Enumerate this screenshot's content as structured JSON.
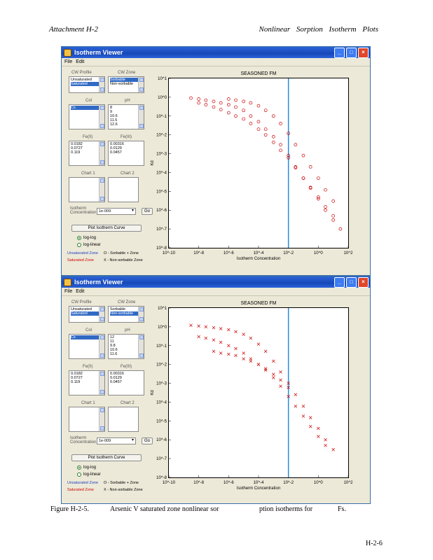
{
  "page_header": {
    "left": "Attachment    H-2",
    "right": "Nonlinear Sorption Isotherm Plots"
  },
  "windows": [
    {
      "title": "Isotherm Viewer",
      "menu": [
        "File",
        "Edit"
      ],
      "panel": {
        "cw_profile_label": "CW Profile",
        "cw_profile_items": [
          "Unsaturated",
          "Saturated"
        ],
        "cw_profile_selected": 1,
        "cw_zone_label": "CW Zone",
        "cw_zone_items": [
          "Sorbable",
          "Non-sorbable"
        ],
        "cw_zone_selected": 0,
        "col_label": "Col",
        "col_items": [
          "Cs"
        ],
        "col_selected": 0,
        "ph_label": "pH",
        "ph_items": [
          "8",
          "9",
          "10.6",
          "11.5",
          "12.6"
        ],
        "ph_selected": -1,
        "fe_label": "Fe(II)",
        "fe_items": [
          "0.0182",
          "0.0727",
          "0.119"
        ],
        "fe3_label": "Fe(III)",
        "fe3_items": [
          "0.00316",
          "0.0129",
          "0.0457"
        ],
        "chart1_label": "Chart 1",
        "chart2_label": "Chart 2",
        "scale_label": "Isotherm Concentration",
        "scale_value": "1e-009",
        "go_label": "Go",
        "plot_button": "Plot Isotherm Curve",
        "radio1": "log-log",
        "radio2": "log-linear",
        "legend1": "Unsaturated Zone",
        "legend2": "Saturated Zone",
        "legend3": "O - Sorbable + Zone",
        "legend4": "X - Non-sorbable Zone"
      },
      "chart_title": "SEASONED FM",
      "marker": "circle"
    },
    {
      "title": "Isotherm Viewer",
      "menu": [
        "File",
        "Edit"
      ],
      "panel": {
        "cw_profile_label": "CW Profile",
        "cw_profile_items": [
          "Unsaturated",
          "Saturated"
        ],
        "cw_profile_selected": 1,
        "cw_zone_label": "CW Zone",
        "cw_zone_items": [
          "Sorbable",
          "Non-sorbable"
        ],
        "cw_zone_selected": 1,
        "col_label": "Col",
        "col_items": [
          "Cs"
        ],
        "col_selected": 0,
        "ph_label": "pH",
        "ph_items": [
          "12",
          "11",
          "9.8",
          "10.6",
          "11.6"
        ],
        "ph_selected": -1,
        "fe_label": "Fe(II)",
        "fe_items": [
          "0.0182",
          "0.0727",
          "0.119"
        ],
        "fe3_label": "Fe(III)",
        "fe3_items": [
          "0.00316",
          "0.0129",
          "0.0457"
        ],
        "chart1_label": "Chart 1",
        "chart2_label": "Chart 2",
        "scale_label": "Isotherm Concentration",
        "scale_value": "1e-009",
        "go_label": "Go",
        "plot_button": "Plot Isotherm Curve",
        "radio1": "log-log",
        "radio2": "log-linear",
        "legend1": "Unsaturated Zone",
        "legend2": "Saturated Zone",
        "legend3": "O - Sorbable + Zone",
        "legend4": "X - Non-sorbable Zone"
      },
      "chart_title": "SEASONED FM",
      "marker": "x"
    }
  ],
  "chart_data": [
    {
      "type": "scatter",
      "marker": "circle",
      "color": "#cc0000",
      "title": "SEASONED FM",
      "xscale": "log",
      "yscale": "log",
      "xlim": [
        1e-10,
        100.0
      ],
      "ylim": [
        1e-08,
        10.0
      ],
      "xlabel": "Isotherm Concentration",
      "ylabel": "Kd",
      "vline_x": 0.01,
      "vline_color": "#2a8ad8",
      "x_ticks": [
        "10^-10",
        "10^-8",
        "10^-6",
        "10^-4",
        "10^-2",
        "10^0",
        "10^2"
      ],
      "y_ticks": [
        "10^1",
        "10^0",
        "10^-1",
        "10^-2",
        "10^-3",
        "10^-4",
        "10^-5",
        "10^-6",
        "10^-7",
        "10^-8"
      ],
      "series": [
        {
          "x": [
            3e-09,
            1e-08,
            3e-08,
            1e-07,
            3e-07,
            1e-06,
            3e-06,
            1e-05,
            3e-05,
            0.0001,
            0.0003,
            0.001,
            0.003,
            0.01,
            0.03,
            0.1,
            0.3,
            1,
            3,
            10,
            30
          ],
          "y": [
            0.9,
            0.8,
            0.7,
            0.6,
            0.5,
            0.4,
            0.3,
            0.2,
            0.1,
            0.05,
            0.02,
            0.008,
            0.003,
            0.0008,
            0.0002,
            5e-05,
            1.5e-05,
            4e-06,
            1e-06,
            3e-07,
            1e-07
          ]
        },
        {
          "x": [
            1e-08,
            3e-08,
            1e-07,
            3e-07,
            1e-06,
            3e-06,
            1e-05,
            3e-05,
            0.0001,
            0.0003,
            0.001,
            0.003,
            0.01,
            0.03,
            0.1,
            0.3,
            1,
            3,
            10
          ],
          "y": [
            0.5,
            0.4,
            0.3,
            0.22,
            0.15,
            0.1,
            0.07,
            0.04,
            0.02,
            0.01,
            0.004,
            0.0015,
            0.0006,
            0.00018,
            5e-05,
            1.6e-05,
            5e-06,
            1.5e-06,
            5e-07
          ]
        },
        {
          "x": [
            1e-06,
            3e-06,
            1e-05,
            3e-05,
            0.0001,
            0.0003,
            0.001,
            0.003,
            0.01,
            0.03,
            0.1,
            0.3,
            1,
            3,
            10
          ],
          "y": [
            0.8,
            0.7,
            0.6,
            0.5,
            0.35,
            0.2,
            0.1,
            0.04,
            0.012,
            0.003,
            0.0008,
            0.0002,
            5e-05,
            1.2e-05,
            3e-06
          ]
        }
      ]
    },
    {
      "type": "scatter",
      "marker": "x",
      "color": "#cc0000",
      "title": "SEASONED FM",
      "xscale": "log",
      "yscale": "log",
      "xlim": [
        1e-10,
        100.0
      ],
      "ylim": [
        1e-08,
        10.0
      ],
      "xlabel": "Isotherm Concentration",
      "ylabel": "Kd",
      "vline_x": 0.01,
      "vline_color": "#2a8ad8",
      "x_ticks": [
        "10^-10",
        "10^-8",
        "10^-6",
        "10^-4",
        "10^-2",
        "10^0",
        "10^2"
      ],
      "y_ticks": [
        "10^1",
        "10^0",
        "10^-1",
        "10^-2",
        "10^-3",
        "10^-4",
        "10^-5",
        "10^-6",
        "10^-7",
        "10^-8"
      ],
      "series": [
        {
          "x": [
            3e-09,
            1e-08,
            3e-08,
            1e-07,
            3e-07,
            1e-06,
            3e-06,
            1e-05,
            3e-05,
            0.0001,
            0.0003,
            0.001,
            0.003,
            0.01,
            0.03,
            0.1,
            0.3,
            1,
            3,
            10
          ],
          "y": [
            1.2,
            1.1,
            1.0,
            0.9,
            0.8,
            0.7,
            0.55,
            0.4,
            0.25,
            0.12,
            0.05,
            0.015,
            0.004,
            0.001,
            0.00025,
            6e-05,
            1.5e-05,
            4e-06,
            1e-06,
            3e-07
          ]
        },
        {
          "x": [
            1e-08,
            3e-08,
            1e-07,
            3e-07,
            1e-06,
            3e-06,
            1e-05,
            3e-05,
            0.0001,
            0.0003,
            0.001,
            0.003,
            0.01,
            0.03,
            0.1,
            0.3,
            1,
            3
          ],
          "y": [
            0.3,
            0.25,
            0.2,
            0.15,
            0.1,
            0.07,
            0.04,
            0.02,
            0.01,
            0.005,
            0.002,
            0.0007,
            0.0002,
            6e-05,
            1.8e-05,
            5e-06,
            1.5e-06,
            5e-07
          ]
        },
        {
          "x": [
            1e-07,
            3e-07,
            1e-06,
            3e-06,
            1e-05,
            3e-05,
            0.0001,
            0.0003,
            0.001,
            0.003,
            0.01
          ],
          "y": [
            0.05,
            0.04,
            0.035,
            0.03,
            0.02,
            0.015,
            0.01,
            0.006,
            0.003,
            0.0015,
            0.0006
          ]
        }
      ]
    }
  ],
  "caption": {
    "label": "Figure H-2-5.",
    "part1": "Arsenic V saturated zone nonlinear sor",
    "part2": "ption isotherms for",
    "part3": "Fs."
  },
  "page_number": "H-2-6"
}
